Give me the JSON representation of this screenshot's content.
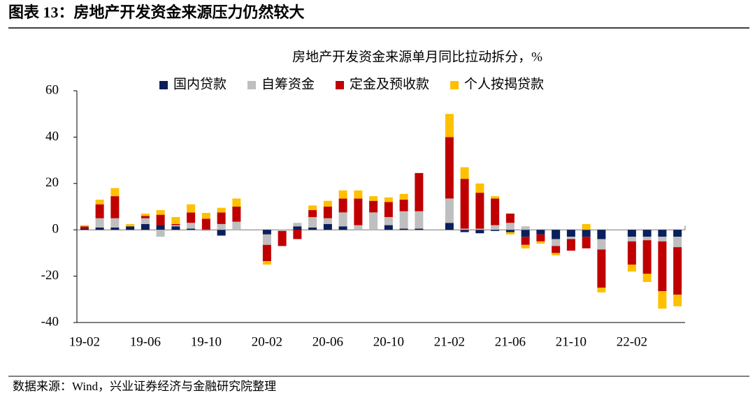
{
  "header": {
    "title": "图表 13：房地产开发资金来源压力仍然较大"
  },
  "source": "数据来源：Wind，兴业证券经济与金融研究院整理",
  "chart_data": {
    "type": "stacked-bar",
    "title": "房地产开发资金来源单月同比拉动拆分，%",
    "categories": [
      "19-02",
      null,
      null,
      null,
      "19-06",
      null,
      null,
      null,
      "19-10",
      null,
      null,
      null,
      "20-02",
      null,
      null,
      null,
      "20-06",
      null,
      null,
      null,
      "20-10",
      null,
      null,
      null,
      "21-02",
      null,
      null,
      null,
      "21-06",
      null,
      null,
      null,
      "21-10",
      null,
      null,
      null,
      "22-02",
      null,
      null,
      null
    ],
    "series": [
      {
        "name": "国内贷款",
        "color": "#0a1f5c",
        "values": [
          0.5,
          1,
          1,
          1.5,
          2.5,
          2,
          1.5,
          0.5,
          0.3,
          -2.5,
          0,
          null,
          -2,
          0,
          1.5,
          1,
          2.5,
          1.5,
          0,
          0,
          2,
          0.5,
          0.5,
          null,
          3,
          -1,
          -1.5,
          -0.5,
          -1,
          -3,
          -2,
          -4,
          -3,
          -3,
          -4,
          null,
          -3,
          -3,
          -3,
          -3
        ]
      },
      {
        "name": "自筹资金",
        "color": "#bfbfbf",
        "values": [
          0,
          4,
          4,
          0,
          2.5,
          -3,
          0.5,
          2.5,
          -0.5,
          2.5,
          3.5,
          null,
          -4.5,
          -0.5,
          1.5,
          4.5,
          2.5,
          6,
          2,
          7.5,
          3.5,
          7.5,
          7.5,
          null,
          10.5,
          0.5,
          0.5,
          2,
          3,
          1.5,
          0,
          -3,
          -1,
          0,
          -4.5,
          null,
          -2,
          -1.5,
          -2,
          -4.5
        ]
      },
      {
        "name": "定金及预收款",
        "color": "#c00000",
        "values": [
          1,
          6,
          9.5,
          0,
          1,
          4.5,
          0.5,
          4.5,
          4.5,
          5,
          6.5,
          null,
          -7,
          -6.5,
          -4,
          3,
          5,
          6,
          11.5,
          5,
          6.5,
          5,
          16.5,
          null,
          26.5,
          21.5,
          15.5,
          11.5,
          4,
          -3.5,
          -3,
          -3,
          -5,
          -5,
          -16.5,
          null,
          -10,
          -14.5,
          -21.5,
          -20.5
        ]
      },
      {
        "name": "个人按揭贷款",
        "color": "#ffc000",
        "values": [
          0.5,
          2,
          3.5,
          1,
          1,
          2,
          3,
          3.5,
          2.5,
          2,
          3.5,
          null,
          -1.5,
          0,
          0,
          2,
          2.5,
          3.5,
          3.5,
          2,
          2,
          2.5,
          0,
          null,
          10,
          5,
          4,
          1,
          -1,
          -1.5,
          -1,
          -1,
          0,
          2.5,
          -2,
          null,
          -3,
          -3.5,
          -7.5,
          -5
        ]
      }
    ],
    "ylim": [
      -40,
      60
    ],
    "yticks": [
      -40,
      -20,
      0,
      20,
      40,
      60
    ]
  }
}
